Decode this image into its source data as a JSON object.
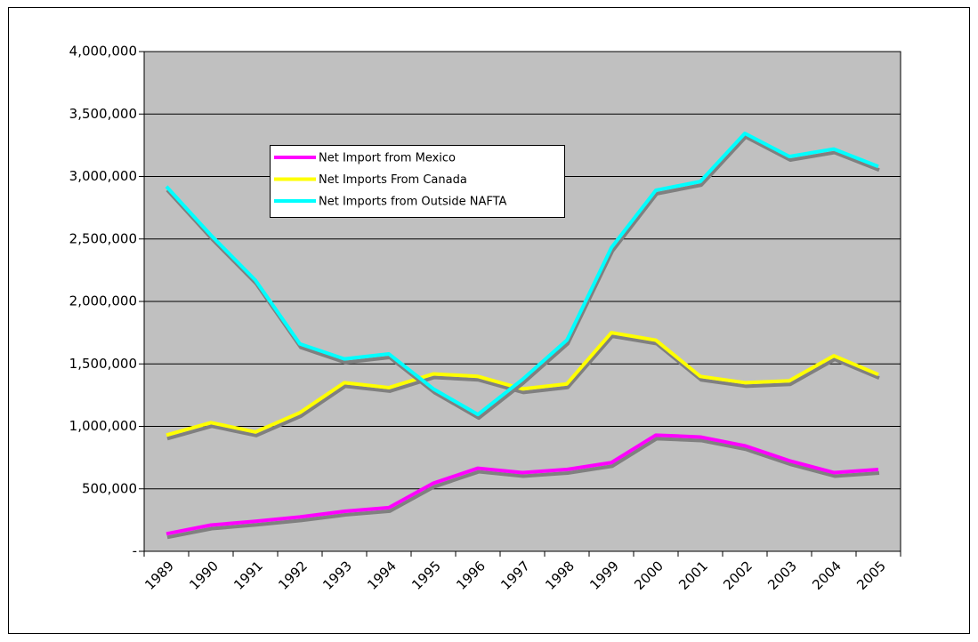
{
  "chart_data": {
    "type": "line",
    "categories": [
      "1989",
      "1990",
      "1991",
      "1992",
      "1993",
      "1994",
      "1995",
      "1996",
      "1997",
      "1998",
      "1999",
      "2000",
      "2001",
      "2002",
      "2003",
      "2004",
      "2005"
    ],
    "series": [
      {
        "name": "Net Import from Mexico",
        "color": "#ff00ff",
        "values": [
          140000,
          210000,
          240000,
          275000,
          320000,
          350000,
          545000,
          665000,
          630000,
          655000,
          710000,
          930000,
          915000,
          845000,
          725000,
          630000,
          655000
        ]
      },
      {
        "name": "Net Imports From Canada",
        "color": "#ffff00",
        "values": [
          930000,
          1030000,
          955000,
          1110000,
          1350000,
          1310000,
          1420000,
          1400000,
          1300000,
          1340000,
          1750000,
          1690000,
          1400000,
          1350000,
          1365000,
          1565000,
          1415000
        ]
      },
      {
        "name": "Net Imports from Outside NAFTA",
        "color": "#00ffff",
        "values": [
          2920000,
          2530000,
          2170000,
          1660000,
          1540000,
          1580000,
          1300000,
          1095000,
          1375000,
          1690000,
          2430000,
          2890000,
          2960000,
          3345000,
          3160000,
          3220000,
          3080000
        ]
      }
    ],
    "ylim": [
      0,
      4000000
    ],
    "yticks": [
      {
        "value": 0,
        "label": "-"
      },
      {
        "value": 500000,
        "label": "500,000"
      },
      {
        "value": 1000000,
        "label": "1,000,000"
      },
      {
        "value": 1500000,
        "label": "1,500,000"
      },
      {
        "value": 2000000,
        "label": "2,000,000"
      },
      {
        "value": 2500000,
        "label": "2,500,000"
      },
      {
        "value": 3000000,
        "label": "3,000,000"
      },
      {
        "value": 3500000,
        "label": "3,500,000"
      },
      {
        "value": 4000000,
        "label": "4,000,000"
      }
    ],
    "grid": true,
    "plot_background": "#c0c0c0"
  }
}
